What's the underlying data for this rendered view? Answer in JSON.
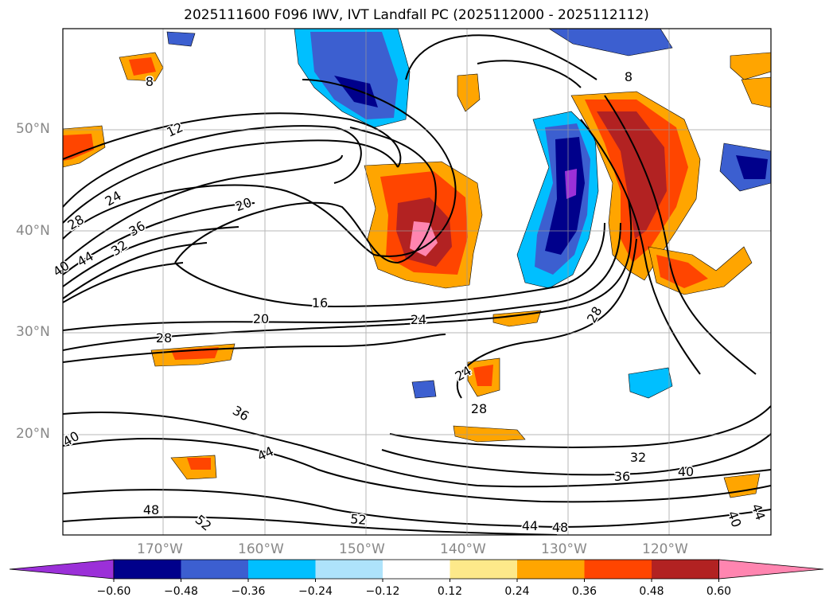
{
  "title": "2025111600 F096 IWV, IVT Landfall PC (2025112000 - 2025112112)",
  "lat_labels": [
    "50°N",
    "40°N",
    "30°N",
    "20°N"
  ],
  "lon_labels": [
    "170°W",
    "160°W",
    "150°W",
    "140°W",
    "130°W",
    "120°W"
  ],
  "contour_labels": [
    "8",
    "8",
    "12",
    "20",
    "24",
    "28",
    "32",
    "36",
    "40",
    "44",
    "16",
    "20",
    "24",
    "28",
    "24",
    "28",
    "28",
    "36",
    "40",
    "44",
    "48",
    "52",
    "52",
    "44",
    "48",
    "32",
    "36",
    "40",
    "40",
    "44"
  ],
  "colorbar": {
    "ticks": [
      "−0.60",
      "−0.48",
      "−0.36",
      "−0.24",
      "−0.12",
      "0.12",
      "0.24",
      "0.36",
      "0.48",
      "0.60"
    ],
    "colors": [
      "#9b30d8",
      "#00008b",
      "#3c5fd0",
      "#00bfff",
      "#aee3fb",
      "#ffffff",
      "#fde98a",
      "#ffa500",
      "#ff4500",
      "#b22222",
      "#ff85b0"
    ]
  },
  "colors": {
    "ocean": "#ffffff",
    "contour": "#000000",
    "grid": "#999999"
  }
}
